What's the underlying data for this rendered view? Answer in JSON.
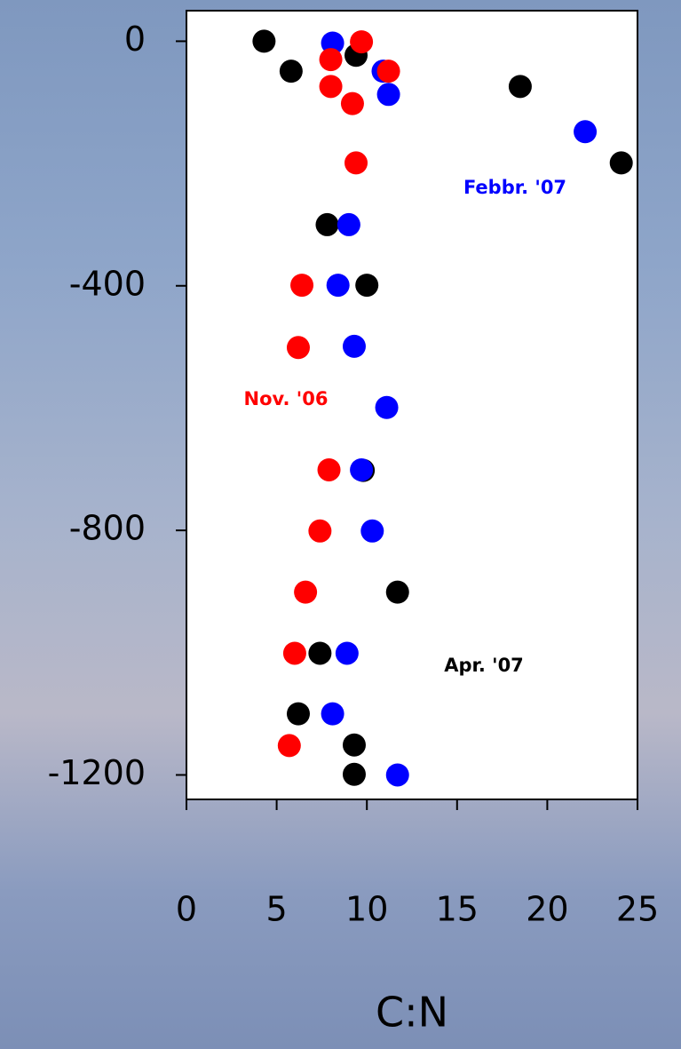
{
  "chart_data": {
    "type": "scatter",
    "x_label": "C:N",
    "xlim": [
      0,
      25
    ],
    "xticks": [
      0,
      5,
      10,
      15,
      20,
      25
    ],
    "ylim": [
      -1240,
      50
    ],
    "yticks": [
      0,
      -400,
      -800,
      -1200
    ],
    "series": [
      {
        "name": "Apr. '07",
        "color": "#000000",
        "x": [
          4.3,
          9.4,
          5.8,
          18.5,
          24.1,
          7.8,
          10.0,
          9.8,
          11.7,
          7.4,
          6.2,
          9.3,
          9.3
        ],
        "values": [
          0,
          -23,
          -49,
          -74,
          -199,
          -300,
          -399,
          -702,
          -901,
          -1001,
          -1100,
          -1151,
          -1199
        ]
      },
      {
        "name": "Febbr. '07",
        "color": "#0000ff",
        "x": [
          8.1,
          10.9,
          11.2,
          22.1,
          9.0,
          8.4,
          9.3,
          11.1,
          9.7,
          10.3,
          8.9,
          8.1,
          11.7
        ],
        "values": [
          -3,
          -49,
          -87,
          -148,
          -300,
          -399,
          -499,
          -599,
          -701,
          -801,
          -1001,
          -1100,
          -1200
        ]
      },
      {
        "name": "Nov. '06",
        "color": "#ff0000",
        "x": [
          9.7,
          8.0,
          11.2,
          8.0,
          9.2,
          9.4,
          6.4,
          6.2,
          7.9,
          7.4,
          6.6,
          6.0,
          5.7
        ],
        "values": [
          -1,
          -30,
          -49,
          -74,
          -102,
          -199,
          -399,
          -501,
          -701,
          -801,
          -901,
          -1001,
          -1152
        ]
      }
    ]
  }
}
